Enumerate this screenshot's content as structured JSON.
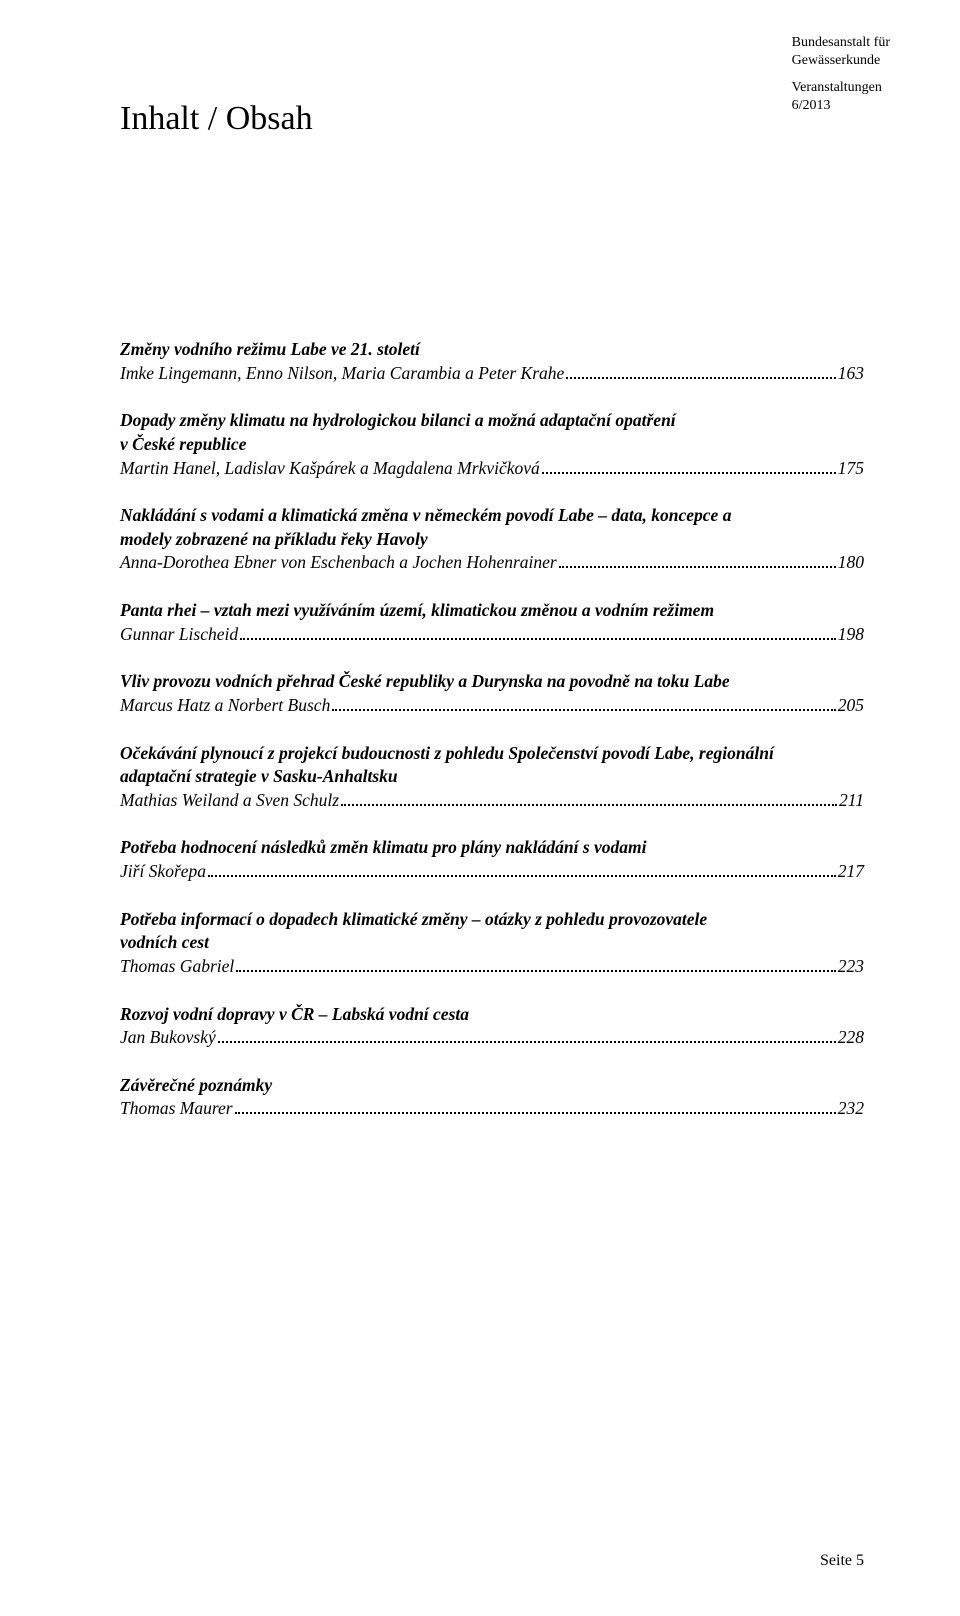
{
  "header": {
    "org_line1": "Bundesanstalt für",
    "org_line2": "Gewässerkunde",
    "event_line1": "Veranstaltungen",
    "event_line2": "6/2013"
  },
  "title": "Inhalt / Obsah",
  "entries": [
    {
      "title_lines": [
        "Změny vodního režimu Labe ve 21. století"
      ],
      "authors": "Imke Lingemann, Enno Nilson, Maria Carambia a Peter Krahe",
      "page": "163"
    },
    {
      "title_lines": [
        "Dopady změny klimatu na hydrologickou bilanci a možná adaptační opatření",
        "v České republice"
      ],
      "authors": "Martin Hanel, Ladislav Kašpárek a Magdalena Mrkvičková",
      "page": "175"
    },
    {
      "title_lines": [
        "Nakládání s vodami a klimatická změna v německém povodí Labe – data, koncepce a",
        "modely zobrazené na příkladu řeky Havoly"
      ],
      "authors": "Anna-Dorothea Ebner von Eschenbach a Jochen Hohenrainer",
      "page": "180"
    },
    {
      "title_lines": [
        "Panta rhei – vztah mezi využíváním území, klimatickou změnou a vodním režimem"
      ],
      "authors": "Gunnar Lischeid",
      "page": "198"
    },
    {
      "title_lines": [
        "Vliv provozu vodních přehrad České republiky a Durynska na povodně na toku Labe"
      ],
      "authors": "Marcus Hatz a Norbert Busch",
      "page": "205"
    },
    {
      "title_lines": [
        "Očekávání plynoucí z projekcí budoucnosti z pohledu Společenství povodí Labe, regionální",
        "adaptační strategie v Sasku-Anhaltsku"
      ],
      "authors": "Mathias Weiland a Sven Schulz",
      "page": "211"
    },
    {
      "title_lines": [
        "Potřeba hodnocení následků změn klimatu pro plány nakládání s vodami"
      ],
      "authors": "Jiří Skořepa",
      "page": "217"
    },
    {
      "title_lines": [
        "Potřeba informací o dopadech klimatické změny – otázky z pohledu provozovatele",
        "vodních cest"
      ],
      "authors": "Thomas Gabriel",
      "page": "223"
    },
    {
      "title_lines": [
        "Rozvoj vodní dopravy v ČR – Labská vodní cesta"
      ],
      "authors": "Jan Bukovský",
      "page": "228"
    },
    {
      "title_lines": [
        "Závěrečné poznámky"
      ],
      "authors": "Thomas Maurer",
      "page": "232"
    }
  ],
  "footer": {
    "page_label": "Seite 5"
  }
}
